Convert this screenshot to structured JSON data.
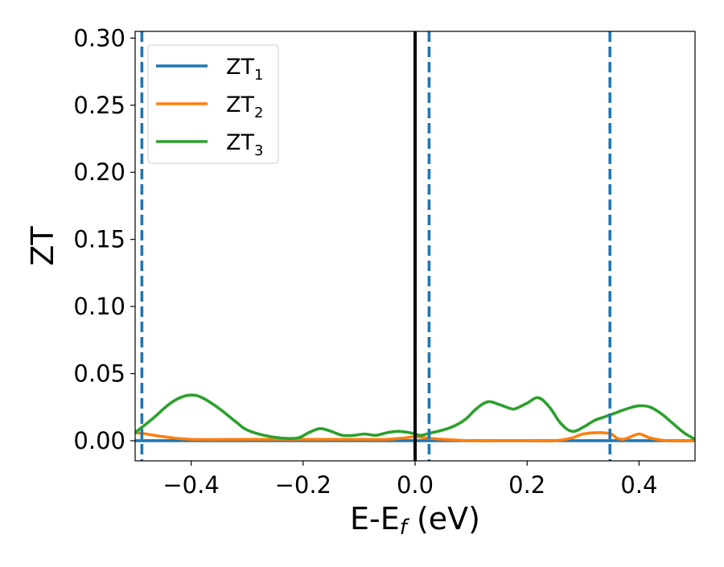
{
  "chart_data": {
    "type": "line",
    "title": "",
    "xlabel": "E-E",
    "xlabel_sub": "f",
    "xlabel_unit": " (eV)",
    "ylabel": "ZT",
    "xlim": [
      -0.5,
      0.5
    ],
    "ylim": [
      -0.015,
      0.305
    ],
    "xticks": [
      -0.4,
      -0.2,
      0.0,
      0.2,
      0.4
    ],
    "xtick_labels": [
      "−0.4",
      "−0.2",
      "0.0",
      "0.2",
      "0.4"
    ],
    "yticks": [
      0.0,
      0.05,
      0.1,
      0.15,
      0.2,
      0.25,
      0.3
    ],
    "ytick_labels": [
      "0.00",
      "0.05",
      "0.10",
      "0.15",
      "0.20",
      "0.25",
      "0.30"
    ],
    "grid": false,
    "legend_position": "top-left",
    "series": [
      {
        "name": "ZT",
        "subscript": "1",
        "color": "#1f77b4",
        "x": [
          -0.5,
          -0.25,
          0.0,
          0.25,
          0.5
        ],
        "y": [
          0.0,
          0.0,
          0.0,
          0.0,
          0.0
        ]
      },
      {
        "name": "ZT",
        "subscript": "2",
        "color": "#ff7f0e",
        "x": [
          -0.5,
          -0.48,
          -0.45,
          -0.4,
          -0.3,
          -0.2,
          -0.15,
          -0.1,
          -0.05,
          -0.02,
          0.0,
          0.02,
          0.05,
          0.1,
          0.15,
          0.2,
          0.25,
          0.28,
          0.3,
          0.33,
          0.35,
          0.36,
          0.37,
          0.38,
          0.4,
          0.42,
          0.45,
          0.5
        ],
        "y": [
          0.006,
          0.005,
          0.003,
          0.001,
          0.001,
          0.001,
          0.001,
          0.001,
          0.001,
          0.002,
          0.003,
          0.002,
          0.001,
          0.0,
          0.0,
          0.0,
          0.0,
          0.002,
          0.005,
          0.006,
          0.005,
          0.002,
          0.001,
          0.002,
          0.005,
          0.002,
          0.0,
          0.0
        ]
      },
      {
        "name": "ZT",
        "subscript": "3",
        "color": "#2ca02c",
        "x": [
          -0.5,
          -0.47,
          -0.44,
          -0.42,
          -0.4,
          -0.38,
          -0.35,
          -0.32,
          -0.3,
          -0.27,
          -0.24,
          -0.21,
          -0.19,
          -0.17,
          -0.15,
          -0.13,
          -0.11,
          -0.09,
          -0.07,
          -0.05,
          -0.03,
          -0.01,
          0.0,
          0.01,
          0.03,
          0.05,
          0.07,
          0.09,
          0.11,
          0.13,
          0.15,
          0.17,
          0.18,
          0.2,
          0.22,
          0.24,
          0.26,
          0.28,
          0.3,
          0.32,
          0.34,
          0.36,
          0.38,
          0.4,
          0.42,
          0.44,
          0.46,
          0.48,
          0.5
        ],
        "y": [
          0.006,
          0.016,
          0.027,
          0.032,
          0.034,
          0.032,
          0.024,
          0.014,
          0.008,
          0.004,
          0.002,
          0.002,
          0.006,
          0.009,
          0.007,
          0.004,
          0.004,
          0.005,
          0.004,
          0.006,
          0.007,
          0.006,
          0.005,
          0.004,
          0.006,
          0.008,
          0.011,
          0.016,
          0.024,
          0.029,
          0.027,
          0.024,
          0.024,
          0.028,
          0.032,
          0.025,
          0.013,
          0.007,
          0.01,
          0.015,
          0.018,
          0.021,
          0.024,
          0.026,
          0.025,
          0.02,
          0.013,
          0.006,
          0.001
        ]
      }
    ],
    "vlines": [
      {
        "x": 0.0,
        "style": "solid",
        "color": "#000000"
      },
      {
        "x": -0.488,
        "style": "dashed",
        "color": "#1f77b4"
      },
      {
        "x": 0.025,
        "style": "dashed",
        "color": "#1f77b4"
      },
      {
        "x": 0.348,
        "style": "dashed",
        "color": "#1f77b4"
      }
    ]
  }
}
